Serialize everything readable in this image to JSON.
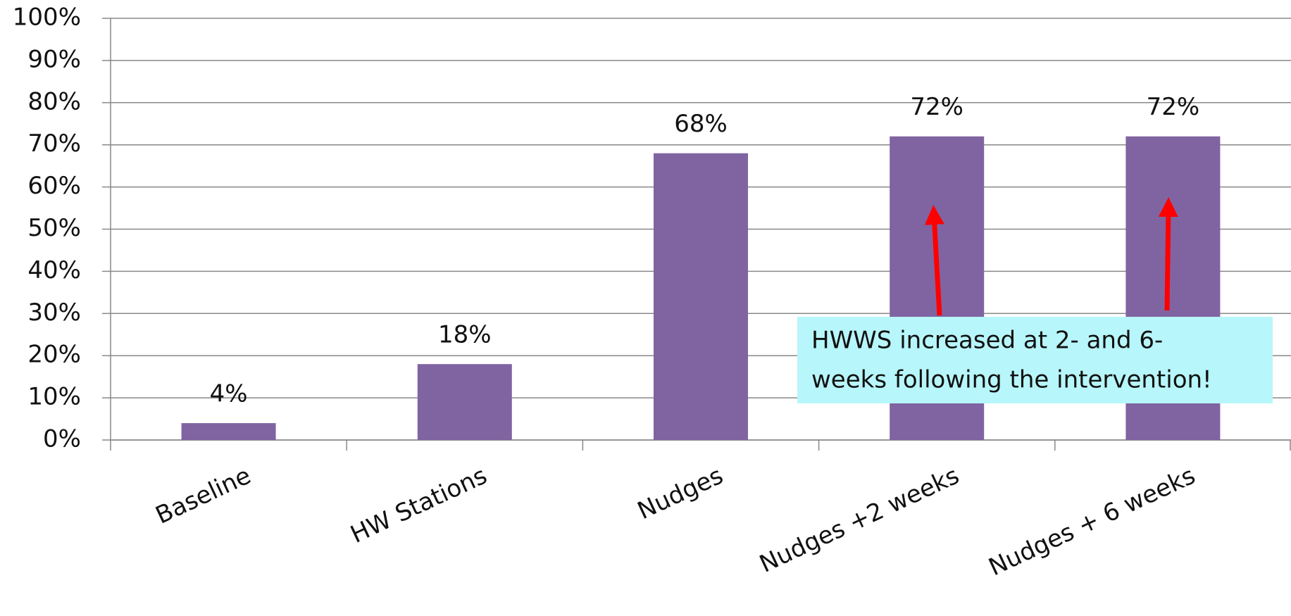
{
  "chart_data": {
    "type": "bar",
    "categories": [
      "Baseline",
      "HW Stations",
      "Nudges",
      "Nudges +2 weeks",
      "Nudges + 6 weeks"
    ],
    "values": [
      4,
      18,
      68,
      72,
      72
    ],
    "value_labels": [
      "4%",
      "18%",
      "68%",
      "72%",
      "72%"
    ],
    "color": "#8064a2",
    "ylim": [
      0,
      100
    ],
    "yticks": [
      {
        "value": 0,
        "label": "0%"
      },
      {
        "value": 10,
        "label": "10%"
      },
      {
        "value": 20,
        "label": "20%"
      },
      {
        "value": 30,
        "label": "30%"
      },
      {
        "value": 40,
        "label": "40%"
      },
      {
        "value": 50,
        "label": "50%"
      },
      {
        "value": 60,
        "label": "60%"
      },
      {
        "value": 70,
        "label": "70%"
      },
      {
        "value": 80,
        "label": "80%"
      },
      {
        "value": 90,
        "label": "90%"
      },
      {
        "value": 100,
        "label": "100%"
      }
    ],
    "grid": true,
    "annotation": [
      "HWWS increased at 2- and 6-",
      "weeks following the intervention!"
    ]
  }
}
